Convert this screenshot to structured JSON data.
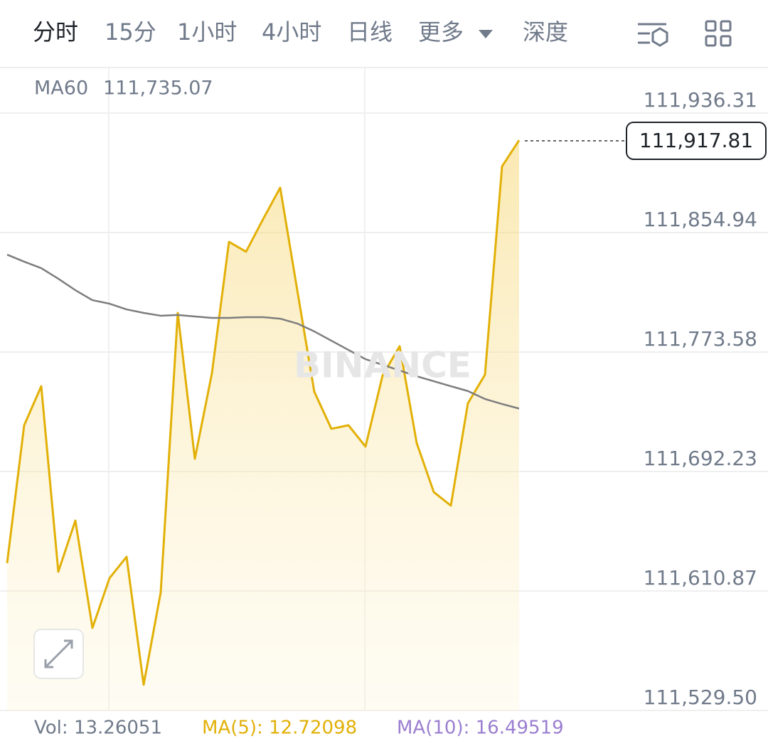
{
  "tabs": [
    "分时",
    "15分",
    "1小时",
    "4小时",
    "日线",
    "更多",
    "深度"
  ],
  "indicator": {
    "name": "MA60",
    "value": "111,735.07"
  },
  "watermark": "BINANCE",
  "current_price": "111,917.81",
  "volume": {
    "vol": "Vol: 13.26051",
    "ma5": "MA(5): 12.72098",
    "ma10": "MA(10): 16.49519"
  },
  "chart_data": {
    "type": "line",
    "ylim": [
      111529.0,
      111967.3
    ],
    "yticks": [
      {
        "value": 111936.31,
        "label": "111,936.31"
      },
      {
        "value": 111854.94,
        "label": "111,854.94"
      },
      {
        "value": 111773.58,
        "label": "111,773.58"
      },
      {
        "value": 111692.23,
        "label": "111,692.23"
      },
      {
        "value": 111610.87,
        "label": "111,610.87"
      },
      {
        "value": 111529.5,
        "label": "111,529.50"
      }
    ],
    "grid": true,
    "series": [
      {
        "name": "price",
        "color": "#e2b007",
        "fill": true,
        "values": [
          111629.8,
          111723.7,
          111750.3,
          111624.0,
          111658.8,
          111585.7,
          111619.6,
          111634.1,
          111547.0,
          111609.9,
          111800.2,
          111700.9,
          111759.1,
          111848.6,
          111841.9,
          111864.1,
          111885.5,
          111815.7,
          111746.5,
          111721.3,
          111723.7,
          111709.2,
          111757.6,
          111777.5,
          111711.6,
          111678.2,
          111669.0,
          111738.7,
          111758.1,
          111900.0,
          111917.81
        ]
      },
      {
        "name": "MA60",
        "color": "#7d7d7d",
        "fill": false,
        "values": [
          111839.9,
          111835.1,
          111830.7,
          111823.5,
          111815.7,
          111808.9,
          111806.5,
          111802.6,
          111800.2,
          111798.3,
          111798.8,
          111797.8,
          111796.8,
          111796.8,
          111797.3,
          111797.3,
          111796.3,
          111793.0,
          111787.6,
          111781.3,
          111775.0,
          111768.7,
          111764.9,
          111761.0,
          111757.1,
          111753.7,
          111750.3,
          111747.0,
          111741.6,
          111738.2,
          111735.07
        ]
      }
    ]
  }
}
